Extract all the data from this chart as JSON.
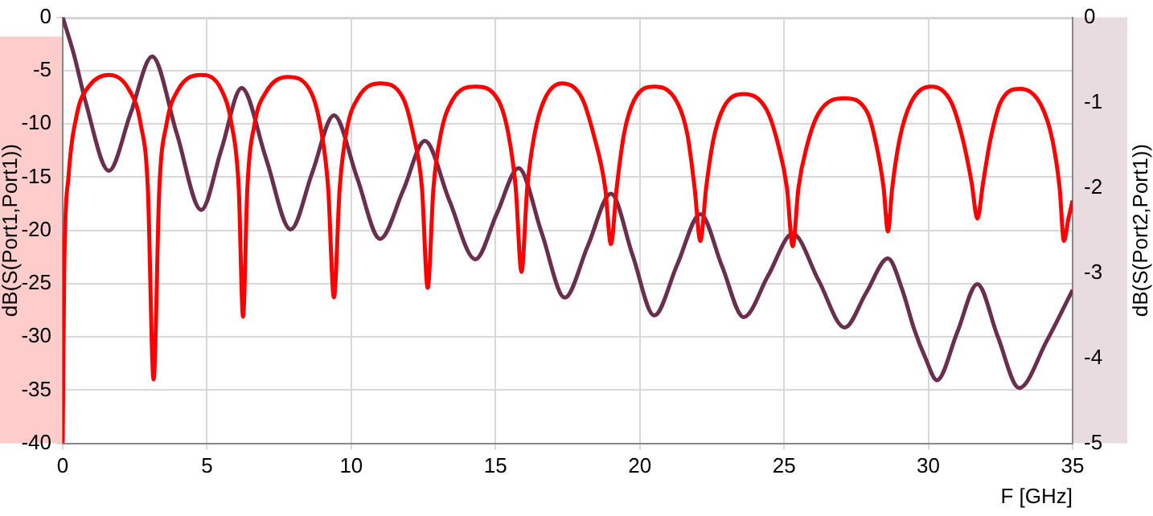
{
  "chart_data": {
    "type": "line",
    "xlabel": "F [GHz]",
    "ylabel": "dB(S(Port1,Port1))",
    "y2label": "dB(S(Port2,Port1))",
    "xlim": [
      0,
      35
    ],
    "xticks": [
      0,
      5,
      10,
      15,
      20,
      25,
      30,
      35
    ],
    "ylim": [
      -40,
      0
    ],
    "yticks": [
      -40,
      -35,
      -30,
      -25,
      -20,
      -15,
      -10,
      -5,
      0
    ],
    "y2lim": [
      -5,
      0
    ],
    "y2ticks": [
      -5,
      -4,
      -3,
      -2,
      -1,
      0
    ],
    "grid": true,
    "legend": false,
    "marker": "none",
    "series": [
      {
        "color": "#ff0000",
        "x": [
          0,
          0.05,
          0.2,
          0.5,
          0.9,
          1.6,
          2.3,
          2.7,
          2.95,
          3.15,
          3.35,
          3.6,
          4.0,
          4.8,
          5.5,
          5.85,
          6.1,
          6.25,
          6.4,
          6.65,
          7.05,
          7.8,
          8.6,
          8.95,
          9.2,
          9.4,
          9.6,
          9.85,
          10.25,
          11.0,
          11.8,
          12.15,
          12.45,
          12.65,
          12.85,
          13.1,
          13.5,
          14.3,
          15.1,
          15.45,
          15.7,
          15.9,
          16.1,
          16.35,
          16.7,
          17.3,
          18.0,
          18.4,
          18.8,
          19.0,
          19.2,
          19.45,
          19.8,
          20.5,
          21.3,
          21.65,
          21.9,
          22.1,
          22.3,
          22.55,
          22.9,
          23.6,
          24.4,
          24.8,
          25.1,
          25.3,
          25.5,
          25.8,
          26.2,
          27.1,
          27.9,
          28.2,
          28.45,
          28.6,
          28.75,
          29.0,
          29.4,
          30.1,
          30.8,
          31.2,
          31.5,
          31.7,
          31.9,
          32.15,
          32.5,
          33.2,
          33.9,
          34.3,
          34.55,
          34.7,
          34.85,
          35
        ],
        "values": [
          -40,
          -24,
          -15,
          -9,
          -6.5,
          -5.4,
          -6.8,
          -10,
          -16,
          -34,
          -16,
          -10,
          -6.8,
          -5.4,
          -6.8,
          -10,
          -16,
          -28.1,
          -16,
          -10,
          -7,
          -5.6,
          -7,
          -10.5,
          -16,
          -26.3,
          -16,
          -10.5,
          -7.5,
          -6.2,
          -7.6,
          -11,
          -16,
          -25.4,
          -16,
          -11,
          -7.8,
          -6.5,
          -7.8,
          -11,
          -16,
          -23.9,
          -16,
          -11,
          -7.7,
          -6.2,
          -7.6,
          -11,
          -16,
          -21.3,
          -16,
          -11,
          -7.8,
          -6.5,
          -8,
          -11,
          -16,
          -21,
          -16,
          -11.5,
          -8.5,
          -7.2,
          -8.7,
          -12,
          -16,
          -21.5,
          -16,
          -12,
          -9,
          -7.6,
          -9,
          -12,
          -16,
          -20.1,
          -16,
          -11.5,
          -8,
          -6.5,
          -8,
          -11.5,
          -15.5,
          -18.9,
          -15.5,
          -11.5,
          -8,
          -6.7,
          -8.2,
          -11.5,
          -16,
          -21,
          -19,
          -17.2
        ]
      },
      {
        "color": "#6b2f4e",
        "axis": "y2",
        "x": [
          0,
          0.4,
          0.8,
          1.6,
          2.35,
          3.1,
          3.95,
          4.8,
          5.5,
          6.2,
          7.05,
          7.9,
          8.65,
          9.4,
          10.2,
          11.0,
          11.8,
          12.55,
          13.4,
          14.3,
          15.05,
          15.8,
          16.6,
          17.4,
          18.2,
          19.0,
          19.75,
          20.5,
          21.3,
          22.1,
          22.85,
          23.6,
          24.45,
          25.3,
          26.2,
          27.1,
          27.85,
          28.6,
          29.1,
          29.5,
          29.9,
          30.3,
          31.0,
          31.7,
          32.4,
          33.15,
          34.1,
          35
        ],
        "values": [
          0,
          -0.45,
          -1.0,
          -1.8,
          -1.13,
          -0.46,
          -1.36,
          -2.26,
          -1.55,
          -0.83,
          -1.66,
          -2.49,
          -1.82,
          -1.15,
          -1.88,
          -2.6,
          -2.03,
          -1.45,
          -2.15,
          -2.84,
          -2.3,
          -1.77,
          -2.53,
          -3.29,
          -2.68,
          -2.07,
          -2.79,
          -3.5,
          -2.9,
          -2.31,
          -2.92,
          -3.52,
          -3.03,
          -2.54,
          -3.09,
          -3.64,
          -3.23,
          -2.83,
          -3.2,
          -3.65,
          -4.0,
          -4.26,
          -3.7,
          -3.13,
          -3.74,
          -4.35,
          -3.8,
          -3.2
        ]
      }
    ]
  }
}
